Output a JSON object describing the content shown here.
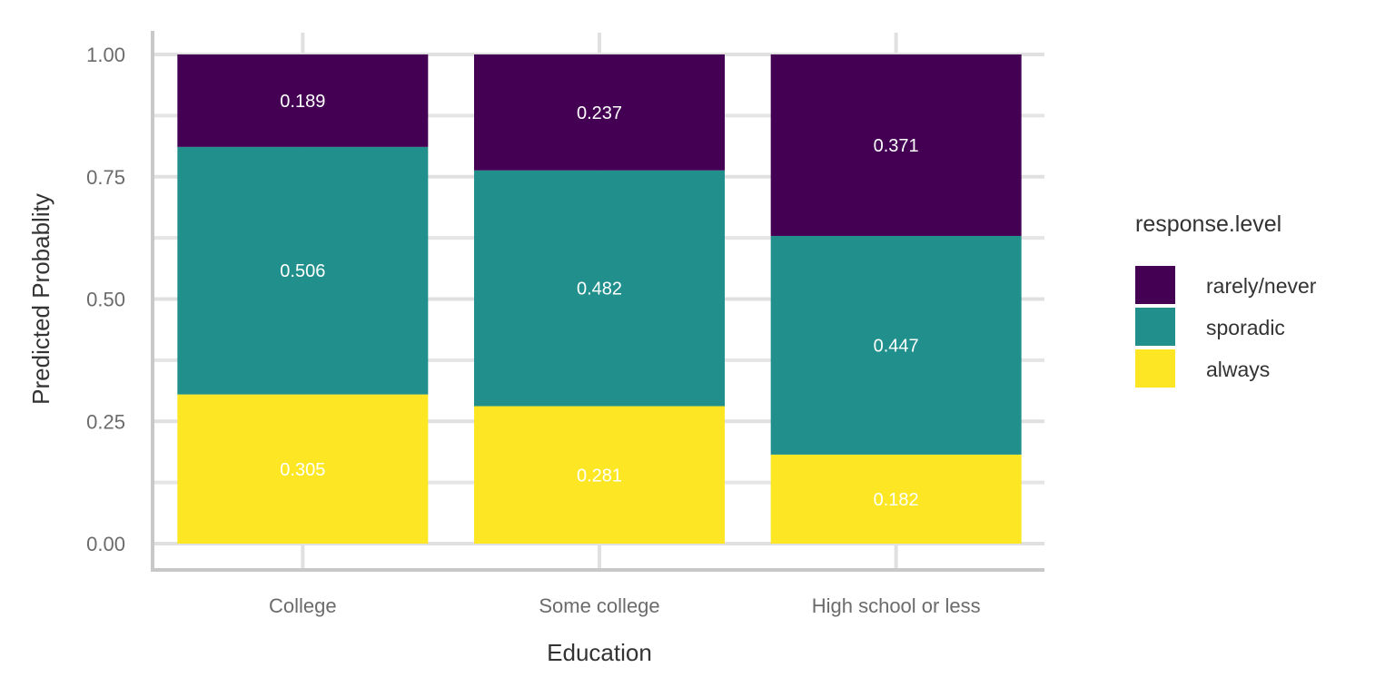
{
  "chart_data": {
    "type": "bar",
    "stacked": true,
    "categories": [
      "College",
      "Some college",
      "High school or less"
    ],
    "series": [
      {
        "name": "always",
        "color": "#FDE725",
        "values": [
          0.305,
          0.281,
          0.182
        ]
      },
      {
        "name": "sporadic",
        "color": "#21908C",
        "values": [
          0.506,
          0.482,
          0.447
        ]
      },
      {
        "name": "rarely/never",
        "color": "#440154",
        "values": [
          0.189,
          0.237,
          0.371
        ]
      }
    ],
    "xlabel": "Education",
    "ylabel": "Predicted Probablity",
    "ylim": [
      0,
      1
    ],
    "yticks": [
      "0.00",
      "0.25",
      "0.50",
      "0.75",
      "1.00"
    ],
    "grid": true,
    "legend": {
      "title": "response.level",
      "position": "right",
      "order": [
        "rarely/never",
        "sporadic",
        "always"
      ]
    }
  }
}
